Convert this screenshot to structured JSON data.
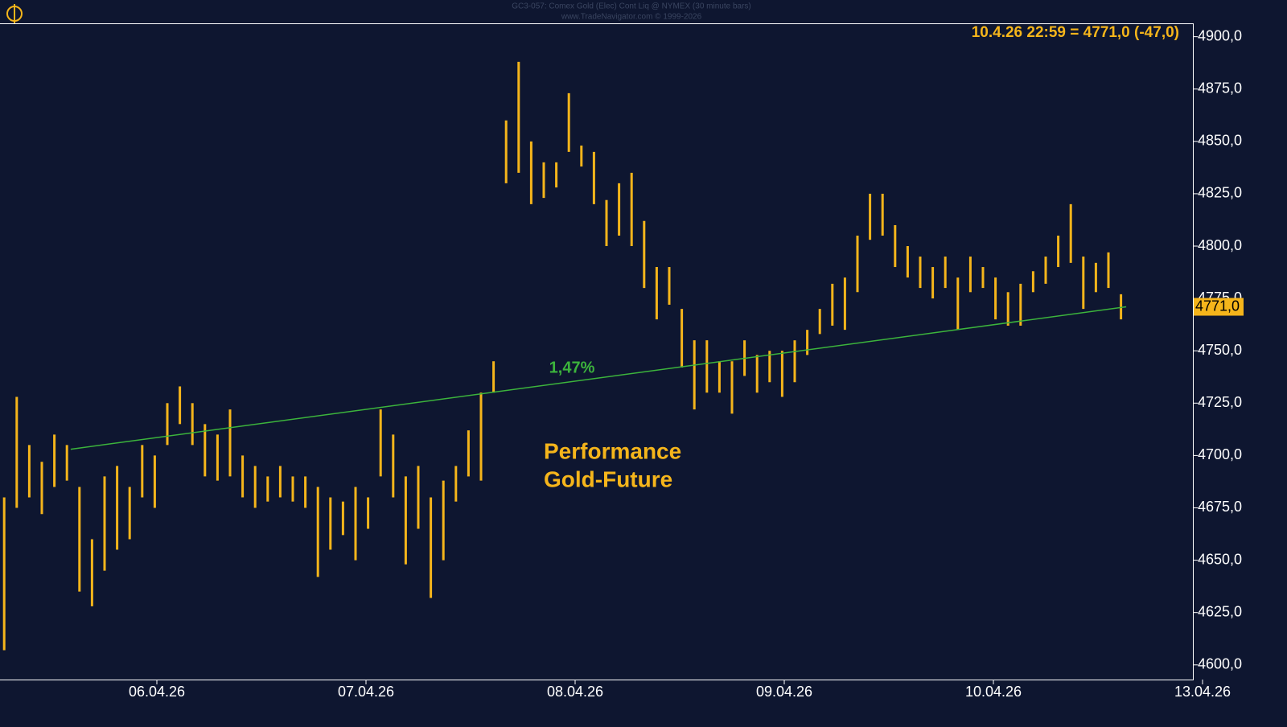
{
  "chart_data": {
    "type": "hlc_bar",
    "title": "GC3-057:  Comex Gold (Elec) Cont Liq @ NYMEX  (30 minute bars)",
    "subtitle": "www.TradeNavigator.com © 1999-2026",
    "info": "10.4.26 22:59 = 4771,0 (-47,0)",
    "annotation": [
      "Performance",
      "Gold-Future"
    ],
    "trend_label": "1,47%",
    "last_price": {
      "value": 4771,
      "label": "4771,0"
    },
    "color": "#f5b51b",
    "trend_color": "#3cb43c",
    "xlim": [
      0.25,
      6
    ],
    "ylim": [
      4593,
      4906
    ],
    "xticks": [
      {
        "value": 1,
        "label": "06.04.26"
      },
      {
        "value": 2,
        "label": "07.04.26"
      },
      {
        "value": 3,
        "label": "08.04.26"
      },
      {
        "value": 4,
        "label": "09.04.26"
      },
      {
        "value": 5,
        "label": "10.04.26"
      },
      {
        "value": 6,
        "label": "13.04.26"
      }
    ],
    "yticks": [
      {
        "value": 4600,
        "label": "4600,0"
      },
      {
        "value": 4625,
        "label": "4625,0"
      },
      {
        "value": 4650,
        "label": "4650,0"
      },
      {
        "value": 4675,
        "label": "4675,0"
      },
      {
        "value": 4700,
        "label": "4700,0"
      },
      {
        "value": 4725,
        "label": "4725,0"
      },
      {
        "value": 4750,
        "label": "4750,0"
      },
      {
        "value": 4775,
        "label": "4775,0"
      },
      {
        "value": 4800,
        "label": "4800,0"
      },
      {
        "value": 4825,
        "label": "4825,0"
      },
      {
        "value": 4850,
        "label": "4850,0"
      },
      {
        "value": 4875,
        "label": "4875,0"
      },
      {
        "value": 4900,
        "label": "4900,0"
      }
    ],
    "x": [
      0.27,
      0.33,
      0.39,
      0.45,
      0.51,
      0.57,
      0.63,
      0.69,
      0.75,
      0.81,
      0.87,
      0.93,
      0.99,
      1.05,
      1.11,
      1.17,
      1.23,
      1.29,
      1.35,
      1.41,
      1.47,
      1.53,
      1.59,
      1.65,
      1.71,
      1.77,
      1.83,
      1.89,
      1.95,
      2.01,
      2.07,
      2.13,
      2.19,
      2.25,
      2.31,
      2.37,
      2.43,
      2.49,
      2.55,
      2.61,
      2.67,
      2.73,
      2.79,
      2.85,
      2.91,
      2.97,
      3.03,
      3.09,
      3.15,
      3.21,
      3.27,
      3.33,
      3.39,
      3.45,
      3.51,
      3.57,
      3.63,
      3.69,
      3.75,
      3.81,
      3.87,
      3.93,
      3.99,
      4.05,
      4.11,
      4.17,
      4.23,
      4.29,
      4.35,
      4.41,
      4.47,
      4.53,
      4.59,
      4.65,
      4.71,
      4.77,
      4.83,
      4.89,
      4.95,
      5.01,
      5.07,
      5.13,
      5.19,
      5.25,
      5.31,
      5.37,
      5.43,
      5.49,
      5.55,
      5.61
    ],
    "high": [
      4680,
      4728,
      4705,
      4697,
      4710,
      4705,
      4685,
      4660,
      4690,
      4695,
      4685,
      4705,
      4700,
      4725,
      4733,
      4725,
      4715,
      4710,
      4722,
      4700,
      4695,
      4690,
      4695,
      4690,
      4690,
      4685,
      4680,
      4678,
      4685,
      4680,
      4722,
      4710,
      4690,
      4695,
      4680,
      4688,
      4695,
      4712,
      4730,
      4745,
      4860,
      4888,
      4850,
      4840,
      4840,
      4873,
      4848,
      4845,
      4822,
      4830,
      4835,
      4812,
      4790,
      4790,
      4770,
      4755,
      4755,
      4745,
      4745,
      4755,
      4748,
      4750,
      4750,
      4755,
      4760,
      4770,
      4782,
      4785,
      4805,
      4825,
      4825,
      4810,
      4800,
      4795,
      4790,
      4795,
      4785,
      4795,
      4790,
      4785,
      4778,
      4782,
      4788,
      4795,
      4805,
      4820,
      4795,
      4792,
      4797,
      4777
    ],
    "low": [
      4607,
      4675,
      4680,
      4672,
      4685,
      4688,
      4635,
      4628,
      4645,
      4655,
      4660,
      4680,
      4675,
      4705,
      4715,
      4705,
      4690,
      4688,
      4690,
      4680,
      4675,
      4678,
      4680,
      4678,
      4675,
      4642,
      4655,
      4662,
      4650,
      4665,
      4690,
      4680,
      4648,
      4665,
      4632,
      4650,
      4678,
      4690,
      4688,
      4730,
      4830,
      4835,
      4820,
      4823,
      4828,
      4845,
      4838,
      4820,
      4800,
      4805,
      4800,
      4780,
      4765,
      4772,
      4742,
      4722,
      4730,
      4730,
      4720,
      4738,
      4730,
      4735,
      4728,
      4735,
      4748,
      4758,
      4762,
      4760,
      4778,
      4803,
      4805,
      4790,
      4785,
      4780,
      4775,
      4780,
      4760,
      4778,
      4780,
      4765,
      4762,
      4762,
      4778,
      4782,
      4790,
      4792,
      4770,
      4778,
      4780,
      4765
    ],
    "trend": {
      "x": [
        0.588,
        5.635
      ],
      "values": [
        4703,
        4771
      ]
    }
  }
}
